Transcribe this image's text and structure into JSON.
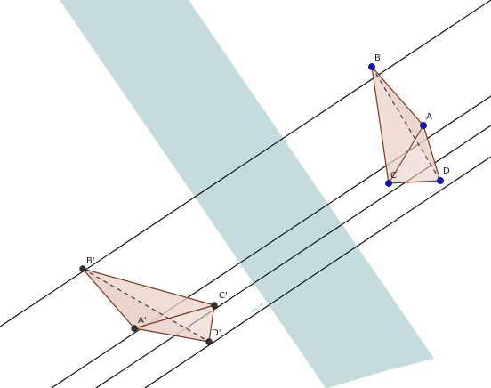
{
  "colors": {
    "background": "#ffffff",
    "plane_fill": "#c5dcdc",
    "line": "#000000",
    "polygon_fill": "#e9d1c8",
    "polygon_stroke": "#7a3a22",
    "hidden_edge": "#333333",
    "original_point": "#1010d0",
    "projected_point": "#333333"
  },
  "points": {
    "original": [
      {
        "id": "B",
        "label": "B"
      },
      {
        "id": "A",
        "label": "A"
      },
      {
        "id": "C",
        "label": "C"
      },
      {
        "id": "D",
        "label": "D"
      }
    ],
    "projected": [
      {
        "id": "B1",
        "label": "B'"
      },
      {
        "id": "A1",
        "label": "A'"
      },
      {
        "id": "C1",
        "label": "C'"
      },
      {
        "id": "D1",
        "label": "D'"
      }
    ]
  }
}
